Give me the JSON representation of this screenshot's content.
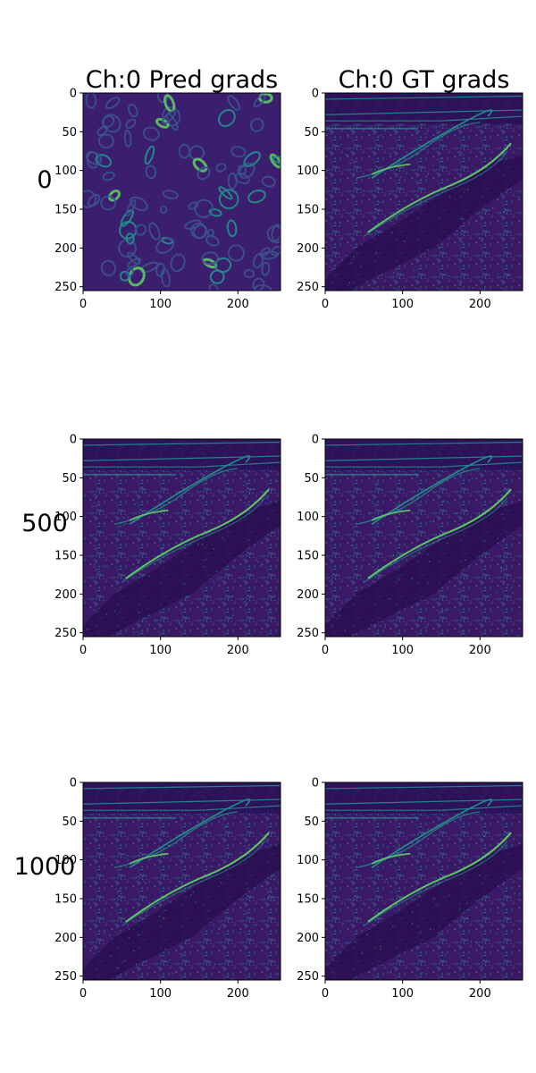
{
  "chart_data": {
    "type": "heatmap",
    "column_titles": [
      "Ch:0 Pred grads",
      "Ch:0 GT grads"
    ],
    "row_labels": [
      "0",
      "500",
      "1000"
    ],
    "x_ticks": [
      0,
      100,
      200
    ],
    "y_ticks": [
      0,
      50,
      100,
      150,
      200,
      250
    ],
    "image_size": [
      256,
      256
    ],
    "xlim": [
      0,
      255
    ],
    "ylim": [
      255,
      0
    ],
    "colormap": "viridis",
    "colors": {
      "dark": "#440154",
      "mid": "#3b528b",
      "teal": "#21908c",
      "green": "#5dc863",
      "yellow": "#fde725"
    },
    "panels": [
      {
        "row": "0",
        "column": "Ch:0 Pred grads",
        "content": "blobs"
      },
      {
        "row": "0",
        "column": "Ch:0 GT grads",
        "content": "edges"
      },
      {
        "row": "500",
        "column": "Ch:0 Pred grads",
        "content": "edges"
      },
      {
        "row": "500",
        "column": "Ch:0 GT grads",
        "content": "edges"
      },
      {
        "row": "1000",
        "column": "Ch:0 Pred grads",
        "content": "edges"
      },
      {
        "row": "1000",
        "column": "Ch:0 GT grads",
        "content": "edges"
      }
    ]
  }
}
